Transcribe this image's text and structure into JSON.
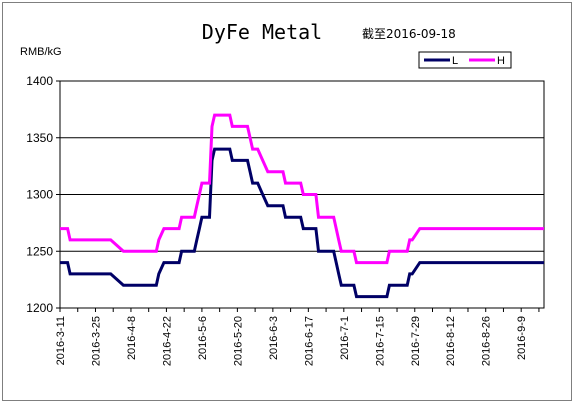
{
  "chart_data": {
    "type": "line",
    "title": "DyFe Metal",
    "subtitle": "截至2016-09-18",
    "ylabel": "RMB/kG",
    "xlabel": "",
    "ylim": [
      1200,
      1400
    ],
    "yticks": [
      1200,
      1250,
      1300,
      1350,
      1400
    ],
    "grid": "horizontal",
    "legend_position": "top-right",
    "categories": [
      "2016-3-11",
      "2016-3-25",
      "2016-4-8",
      "2016-4-22",
      "2016-5-6",
      "2016-5-20",
      "2016-6-3",
      "2016-6-17",
      "2016-7-1",
      "2016-7-15",
      "2016-7-29",
      "2016-8-12",
      "2016-8-26",
      "2016-9-9"
    ],
    "x_start": "2016-3-11",
    "x_end": "2016-9-18",
    "series": [
      {
        "name": "L",
        "color": "#000066",
        "points": [
          [
            "2016-3-11",
            1240
          ],
          [
            "2016-3-14",
            1240
          ],
          [
            "2016-3-15",
            1230
          ],
          [
            "2016-3-31",
            1230
          ],
          [
            "2016-4-5",
            1220
          ],
          [
            "2016-4-18",
            1220
          ],
          [
            "2016-4-19",
            1230
          ],
          [
            "2016-4-21",
            1240
          ],
          [
            "2016-4-27",
            1240
          ],
          [
            "2016-4-28",
            1250
          ],
          [
            "2016-5-3",
            1250
          ],
          [
            "2016-5-4",
            1260
          ],
          [
            "2016-5-5",
            1270
          ],
          [
            "2016-5-6",
            1280
          ],
          [
            "2016-5-9",
            1280
          ],
          [
            "2016-5-10",
            1330
          ],
          [
            "2016-5-11",
            1340
          ],
          [
            "2016-5-17",
            1340
          ],
          [
            "2016-5-18",
            1330
          ],
          [
            "2016-5-24",
            1330
          ],
          [
            "2016-5-25",
            1320
          ],
          [
            "2016-5-26",
            1310
          ],
          [
            "2016-5-28",
            1310
          ],
          [
            "2016-5-30",
            1300
          ],
          [
            "2016-6-1",
            1290
          ],
          [
            "2016-6-7",
            1290
          ],
          [
            "2016-6-8",
            1280
          ],
          [
            "2016-6-14",
            1280
          ],
          [
            "2016-6-15",
            1270
          ],
          [
            "2016-6-20",
            1270
          ],
          [
            "2016-6-21",
            1250
          ],
          [
            "2016-6-27",
            1250
          ],
          [
            "2016-6-28",
            1240
          ],
          [
            "2016-6-29",
            1230
          ],
          [
            "2016-6-30",
            1220
          ],
          [
            "2016-7-5",
            1220
          ],
          [
            "2016-7-6",
            1210
          ],
          [
            "2016-7-18",
            1210
          ],
          [
            "2016-7-19",
            1220
          ],
          [
            "2016-7-26",
            1220
          ],
          [
            "2016-7-27",
            1230
          ],
          [
            "2016-7-28",
            1230
          ],
          [
            "2016-7-31",
            1240
          ],
          [
            "2016-9-18",
            1240
          ]
        ]
      },
      {
        "name": "H",
        "color": "#ff00ff",
        "points": [
          [
            "2016-3-11",
            1270
          ],
          [
            "2016-3-14",
            1270
          ],
          [
            "2016-3-15",
            1260
          ],
          [
            "2016-3-31",
            1260
          ],
          [
            "2016-4-5",
            1250
          ],
          [
            "2016-4-18",
            1250
          ],
          [
            "2016-4-19",
            1260
          ],
          [
            "2016-4-21",
            1270
          ],
          [
            "2016-4-27",
            1270
          ],
          [
            "2016-4-28",
            1280
          ],
          [
            "2016-5-3",
            1280
          ],
          [
            "2016-5-4",
            1290
          ],
          [
            "2016-5-5",
            1300
          ],
          [
            "2016-5-6",
            1310
          ],
          [
            "2016-5-9",
            1310
          ],
          [
            "2016-5-10",
            1360
          ],
          [
            "2016-5-11",
            1370
          ],
          [
            "2016-5-17",
            1370
          ],
          [
            "2016-5-18",
            1360
          ],
          [
            "2016-5-24",
            1360
          ],
          [
            "2016-5-25",
            1350
          ],
          [
            "2016-5-26",
            1340
          ],
          [
            "2016-5-28",
            1340
          ],
          [
            "2016-5-30",
            1330
          ],
          [
            "2016-6-1",
            1320
          ],
          [
            "2016-6-7",
            1320
          ],
          [
            "2016-6-8",
            1310
          ],
          [
            "2016-6-14",
            1310
          ],
          [
            "2016-6-15",
            1300
          ],
          [
            "2016-6-20",
            1300
          ],
          [
            "2016-6-21",
            1280
          ],
          [
            "2016-6-27",
            1280
          ],
          [
            "2016-6-28",
            1270
          ],
          [
            "2016-6-29",
            1260
          ],
          [
            "2016-6-30",
            1250
          ],
          [
            "2016-7-5",
            1250
          ],
          [
            "2016-7-6",
            1240
          ],
          [
            "2016-7-18",
            1240
          ],
          [
            "2016-7-19",
            1250
          ],
          [
            "2016-7-26",
            1250
          ],
          [
            "2016-7-27",
            1260
          ],
          [
            "2016-7-28",
            1260
          ],
          [
            "2016-7-31",
            1270
          ],
          [
            "2016-9-18",
            1270
          ]
        ]
      }
    ]
  }
}
